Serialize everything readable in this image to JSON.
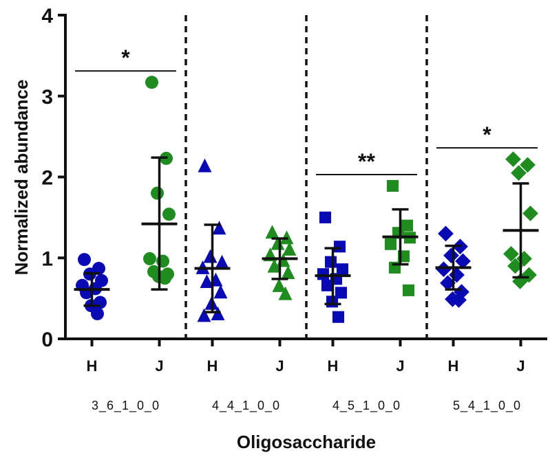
{
  "chart_data": {
    "type": "scatter",
    "title": "",
    "xlabel": "Oligosaccharide",
    "ylabel": "Normalized abundance",
    "ylim": [
      0,
      4
    ],
    "yticks": [
      "0",
      "1",
      "2",
      "3",
      "4"
    ],
    "grid": false,
    "legend": "none",
    "categories": [
      "3_6_1_0_0",
      "4_4_1_0_0",
      "4_5_1_0_0",
      "5_4_1_0_0"
    ],
    "groups": [
      "H",
      "J"
    ],
    "colors": {
      "H": "#0a0ab4",
      "J": "#1e8c1e",
      "summary": "#111111"
    },
    "markers": [
      "circle",
      "triangle",
      "square",
      "diamond"
    ],
    "panels": [
      {
        "category": "3_6_1_0_0",
        "series": [
          {
            "group": "H",
            "mean": 0.61,
            "sd_low": 0.41,
            "sd_high": 0.81,
            "points": [
              0.98,
              0.87,
              0.8,
              0.72,
              0.66,
              0.62,
              0.57,
              0.45,
              0.41,
              0.31
            ]
          },
          {
            "group": "J",
            "mean": 1.42,
            "sd_low": 0.61,
            "sd_high": 2.24,
            "points": [
              3.17,
              2.23,
              1.8,
              1.54,
              0.99,
              0.96,
              0.83,
              0.8,
              0.77,
              0.75
            ]
          }
        ],
        "significance": "*"
      },
      {
        "category": "4_4_1_0_0",
        "series": [
          {
            "group": "H",
            "mean": 0.87,
            "sd_low": 0.33,
            "sd_high": 1.41,
            "points": [
              2.13,
              1.36,
              1.01,
              0.94,
              0.87,
              0.72,
              0.7,
              0.57,
              0.43,
              0.3,
              0.28
            ]
          },
          {
            "group": "J",
            "mean": 0.99,
            "sd_low": 0.74,
            "sd_high": 1.24,
            "points": [
              1.31,
              1.24,
              1.17,
              1.1,
              1.03,
              0.96,
              0.89,
              0.81,
              0.65,
              0.55
            ]
          }
        ],
        "significance": ""
      },
      {
        "category": "4_5_1_0_0",
        "series": [
          {
            "group": "H",
            "mean": 0.78,
            "sd_low": 0.43,
            "sd_high": 1.12,
            "points": [
              1.5,
              1.14,
              0.95,
              0.86,
              0.8,
              0.74,
              0.66,
              0.57,
              0.46,
              0.27
            ]
          },
          {
            "group": "J",
            "mean": 1.26,
            "sd_low": 0.92,
            "sd_high": 1.6,
            "points": [
              1.89,
              1.4,
              1.31,
              1.25,
              1.17,
              1.02,
              0.88,
              0.6
            ]
          }
        ],
        "significance": "**"
      },
      {
        "category": "5_4_1_0_0",
        "series": [
          {
            "group": "H",
            "mean": 0.88,
            "sd_low": 0.61,
            "sd_high": 1.15,
            "points": [
              1.3,
              1.14,
              1.03,
              0.96,
              0.86,
              0.79,
              0.69,
              0.58,
              0.49,
              0.48
            ]
          },
          {
            "group": "J",
            "mean": 1.34,
            "sd_low": 0.76,
            "sd_high": 1.92,
            "points": [
              2.22,
              2.15,
              2.05,
              1.55,
              1.05,
              0.99,
              0.9,
              0.79,
              0.71
            ]
          }
        ],
        "significance": "*"
      }
    ]
  }
}
